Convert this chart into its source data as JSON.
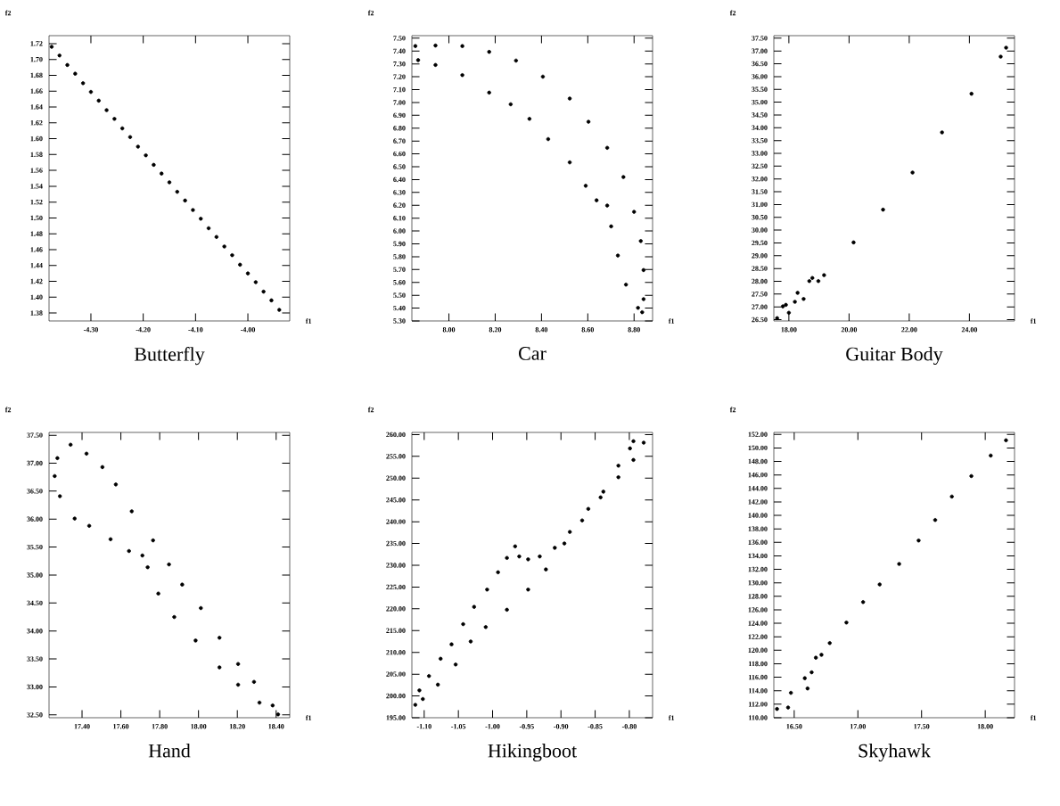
{
  "chart_data": [
    {
      "type": "scatter",
      "title": "Butterfly",
      "xlabel": "f1",
      "ylabel": "f2",
      "color": "#000000",
      "marker": "circle",
      "xlim": [
        -4.38,
        -3.92
      ],
      "ylim": [
        1.37,
        1.73
      ],
      "xticks": [
        {
          "value": -4.3,
          "label": "-4.30"
        },
        {
          "value": -4.2,
          "label": "-4.20"
        },
        {
          "value": -4.1,
          "label": "-4.10"
        },
        {
          "value": -4.0,
          "label": "-4.00"
        }
      ],
      "yticks": [
        {
          "value": 1.38,
          "label": "1.38"
        },
        {
          "value": 1.4,
          "label": "1.40"
        },
        {
          "value": 1.42,
          "label": "1.42"
        },
        {
          "value": 1.44,
          "label": "1.44"
        },
        {
          "value": 1.46,
          "label": "1.46"
        },
        {
          "value": 1.48,
          "label": "1.48"
        },
        {
          "value": 1.5,
          "label": "1.50"
        },
        {
          "value": 1.52,
          "label": "1.52"
        },
        {
          "value": 1.54,
          "label": "1.54"
        },
        {
          "value": 1.56,
          "label": "1.56"
        },
        {
          "value": 1.58,
          "label": "1.58"
        },
        {
          "value": 1.6,
          "label": "1.60"
        },
        {
          "value": 1.62,
          "label": "1.62"
        },
        {
          "value": 1.64,
          "label": "1.64"
        },
        {
          "value": 1.66,
          "label": "1.66"
        },
        {
          "value": 1.68,
          "label": "1.68"
        },
        {
          "value": 1.7,
          "label": "1.70"
        },
        {
          "value": 1.72,
          "label": "1.72"
        }
      ],
      "x": [
        -4.375,
        -4.36,
        -4.345,
        -4.33,
        -4.315,
        -4.3,
        -4.285,
        -4.27,
        -4.255,
        -4.24,
        -4.225,
        -4.21,
        -4.195,
        -4.18,
        -4.165,
        -4.15,
        -4.135,
        -4.12,
        -4.105,
        -4.09,
        -4.075,
        -4.06,
        -4.045,
        -4.03,
        -4.015,
        -4.0,
        -3.985,
        -3.97,
        -3.955,
        -3.94
      ],
      "values": [
        1.716,
        1.705,
        1.693,
        1.682,
        1.67,
        1.659,
        1.648,
        1.636,
        1.625,
        1.613,
        1.602,
        1.59,
        1.579,
        1.567,
        1.556,
        1.545,
        1.533,
        1.522,
        1.51,
        1.499,
        1.487,
        1.476,
        1.464,
        1.453,
        1.441,
        1.43,
        1.419,
        1.407,
        1.396,
        1.384
      ]
    },
    {
      "type": "scatter",
      "title": "Car",
      "xlabel": "f1",
      "ylabel": "f2",
      "color": "#000000",
      "marker": "circle",
      "xlim": [
        7.84,
        8.88
      ],
      "ylim": [
        5.3,
        7.52
      ],
      "xticks": [
        {
          "value": 8.0,
          "label": "8.00"
        },
        {
          "value": 8.2,
          "label": "8.20"
        },
        {
          "value": 8.4,
          "label": "8.40"
        },
        {
          "value": 8.6,
          "label": "8.60"
        },
        {
          "value": 8.8,
          "label": "8.80"
        }
      ],
      "yticks": [
        {
          "value": 5.3,
          "label": "5.30"
        },
        {
          "value": 5.4,
          "label": "5.40"
        },
        {
          "value": 5.5,
          "label": "5.50"
        },
        {
          "value": 5.6,
          "label": "5.60"
        },
        {
          "value": 5.7,
          "label": "5.70"
        },
        {
          "value": 5.8,
          "label": "5.80"
        },
        {
          "value": 5.9,
          "label": "5.90"
        },
        {
          "value": 6.0,
          "label": "6.00"
        },
        {
          "value": 6.1,
          "label": "6.10"
        },
        {
          "value": 6.2,
          "label": "6.20"
        },
        {
          "value": 6.3,
          "label": "6.30"
        },
        {
          "value": 6.4,
          "label": "6.40"
        },
        {
          "value": 6.5,
          "label": "6.50"
        },
        {
          "value": 6.6,
          "label": "6.60"
        },
        {
          "value": 6.7,
          "label": "6.70"
        },
        {
          "value": 6.8,
          "label": "6.80"
        },
        {
          "value": 6.9,
          "label": "6.90"
        },
        {
          "value": 7.0,
          "label": "7.00"
        },
        {
          "value": 7.1,
          "label": "7.10"
        },
        {
          "value": 7.2,
          "label": "7.20"
        },
        {
          "value": 7.3,
          "label": "7.30"
        },
        {
          "value": 7.4,
          "label": "7.40"
        },
        {
          "value": 7.5,
          "label": "7.50"
        }
      ],
      "x": [
        7.855,
        7.942,
        8.058,
        8.174,
        8.29,
        8.406,
        8.522,
        8.603,
        8.684,
        8.754,
        8.8,
        8.829,
        8.841,
        8.841,
        8.835,
        7.867,
        7.942,
        8.058,
        8.174,
        8.267,
        8.348,
        8.429,
        8.522,
        8.591,
        8.638,
        8.684,
        8.701,
        8.73,
        8.765,
        8.817
      ],
      "values": [
        7.439,
        7.443,
        7.439,
        7.394,
        7.326,
        7.201,
        7.031,
        6.85,
        6.647,
        6.42,
        6.149,
        5.922,
        5.696,
        5.47,
        5.368,
        7.33,
        7.292,
        7.213,
        7.077,
        6.986,
        6.873,
        6.715,
        6.534,
        6.352,
        6.239,
        6.198,
        6.036,
        5.809,
        5.583,
        5.402
      ]
    },
    {
      "type": "scatter",
      "title": "Guitar Body",
      "xlabel": "f1",
      "ylabel": "f2",
      "color": "#000000",
      "marker": "circle",
      "xlim": [
        17.5,
        25.5
      ],
      "ylim": [
        26.45,
        37.6
      ],
      "xticks": [
        {
          "value": 18,
          "label": "18.00"
        },
        {
          "value": 20,
          "label": "20.00"
        },
        {
          "value": 22,
          "label": "22.00"
        },
        {
          "value": 24,
          "label": "24.00"
        }
      ],
      "yticks": [
        {
          "value": 26.5,
          "label": "26.50"
        },
        {
          "value": 27.0,
          "label": "27.00"
        },
        {
          "value": 27.5,
          "label": "27.50"
        },
        {
          "value": 28.0,
          "label": "28.00"
        },
        {
          "value": 28.5,
          "label": "28.50"
        },
        {
          "value": 29.0,
          "label": "29.00"
        },
        {
          "value": 29.5,
          "label": "29.50"
        },
        {
          "value": 30.0,
          "label": "30.00"
        },
        {
          "value": 30.5,
          "label": "30.50"
        },
        {
          "value": 31.0,
          "label": "31.00"
        },
        {
          "value": 31.5,
          "label": "31.50"
        },
        {
          "value": 32.0,
          "label": "32.00"
        },
        {
          "value": 32.5,
          "label": "32.50"
        },
        {
          "value": 33.0,
          "label": "33.00"
        },
        {
          "value": 33.5,
          "label": "33.50"
        },
        {
          "value": 34.0,
          "label": "34.00"
        },
        {
          "value": 34.5,
          "label": "34.50"
        },
        {
          "value": 35.0,
          "label": "35.00"
        },
        {
          "value": 35.5,
          "label": "35.50"
        },
        {
          "value": 36.0,
          "label": "36.00"
        },
        {
          "value": 36.5,
          "label": "36.50"
        },
        {
          "value": 37.0,
          "label": "37.00"
        },
        {
          "value": 37.5,
          "label": "37.50"
        }
      ],
      "x": [
        17.61,
        17.8,
        17.9,
        18.0,
        18.2,
        18.29,
        18.49,
        18.68,
        18.78,
        18.98,
        19.17,
        20.15,
        21.13,
        22.11,
        23.09,
        24.07,
        25.04,
        25.22
      ],
      "values": [
        26.56,
        27.02,
        27.08,
        26.77,
        27.2,
        27.55,
        27.31,
        28.01,
        28.13,
        28.01,
        28.24,
        29.52,
        30.8,
        32.25,
        33.82,
        35.33,
        36.78,
        37.13
      ]
    },
    {
      "type": "scatter",
      "title": "Hand",
      "xlabel": "f1",
      "ylabel": "f2",
      "color": "#000000",
      "marker": "circle",
      "xlim": [
        17.23,
        18.47
      ],
      "ylim": [
        32.45,
        37.55
      ],
      "xticks": [
        {
          "value": 17.4,
          "label": "17.40"
        },
        {
          "value": 17.6,
          "label": "17.60"
        },
        {
          "value": 17.8,
          "label": "17.80"
        },
        {
          "value": 18.0,
          "label": "18.00"
        },
        {
          "value": 18.2,
          "label": "18.20"
        },
        {
          "value": 18.4,
          "label": "18.40"
        }
      ],
      "yticks": [
        {
          "value": 32.5,
          "label": "32.50"
        },
        {
          "value": 33.0,
          "label": "33.00"
        },
        {
          "value": 33.5,
          "label": "33.50"
        },
        {
          "value": 34.0,
          "label": "34.00"
        },
        {
          "value": 34.5,
          "label": "34.50"
        },
        {
          "value": 35.0,
          "label": "35.00"
        },
        {
          "value": 35.5,
          "label": "35.50"
        },
        {
          "value": 36.0,
          "label": "36.00"
        },
        {
          "value": 36.5,
          "label": "36.50"
        },
        {
          "value": 37.0,
          "label": "37.00"
        },
        {
          "value": 37.5,
          "label": "37.50"
        }
      ],
      "x": [
        17.341,
        17.273,
        17.259,
        17.286,
        17.362,
        17.437,
        17.547,
        17.642,
        17.711,
        17.738,
        17.793,
        17.875,
        17.985,
        18.108,
        18.204,
        18.314,
        18.41,
        17.423,
        17.505,
        17.574,
        17.656,
        17.766,
        17.848,
        17.916,
        18.012,
        18.108,
        18.204,
        18.286,
        18.382
      ],
      "values": [
        37.33,
        37.09,
        36.77,
        36.41,
        36.01,
        35.88,
        35.64,
        35.43,
        35.35,
        35.14,
        34.67,
        34.25,
        33.83,
        33.35,
        33.04,
        32.72,
        32.51,
        37.17,
        36.93,
        36.62,
        36.14,
        35.62,
        35.19,
        34.83,
        34.41,
        33.88,
        33.41,
        33.09,
        32.67
      ]
    },
    {
      "type": "scatter",
      "title": "Hikingboot",
      "xlabel": "f1",
      "ylabel": "f2",
      "color": "#000000",
      "marker": "circle",
      "xlim": [
        -1.118,
        -0.766
      ],
      "ylim": [
        195,
        260.5
      ],
      "xticks": [
        {
          "value": -1.1,
          "label": "-1.10"
        },
        {
          "value": -1.05,
          "label": "-1.05"
        },
        {
          "value": -1.0,
          "label": "-1.00"
        },
        {
          "value": -0.95,
          "label": "-0.95"
        },
        {
          "value": -0.9,
          "label": "-0.90"
        },
        {
          "value": -0.85,
          "label": "-0.85"
        },
        {
          "value": -0.8,
          "label": "-0.80"
        }
      ],
      "yticks": [
        {
          "value": 195,
          "label": "195.00"
        },
        {
          "value": 200,
          "label": "200.00"
        },
        {
          "value": 205,
          "label": "205.00"
        },
        {
          "value": 210,
          "label": "210.00"
        },
        {
          "value": 215,
          "label": "215.00"
        },
        {
          "value": 220,
          "label": "220.00"
        },
        {
          "value": 225,
          "label": "225.00"
        },
        {
          "value": 230,
          "label": "230.00"
        },
        {
          "value": 235,
          "label": "235.00"
        },
        {
          "value": 240,
          "label": "240.00"
        },
        {
          "value": 245,
          "label": "245.00"
        },
        {
          "value": 250,
          "label": "250.00"
        },
        {
          "value": 255,
          "label": "255.00"
        },
        {
          "value": 260,
          "label": "260.00"
        }
      ],
      "x": [
        -1.113,
        -1.107,
        -1.093,
        -1.076,
        -1.06,
        -1.043,
        -1.027,
        -1.008,
        -0.992,
        -0.979,
        -0.967,
        -0.961,
        -0.948,
        -0.931,
        -0.909,
        -0.887,
        -0.86,
        -0.838,
        -0.816,
        -0.799,
        -0.794,
        -1.102,
        -1.08,
        -1.054,
        -1.032,
        -1.01,
        -0.979,
        -0.948,
        -0.922,
        -0.895,
        -0.869,
        -0.842,
        -0.816,
        -0.794,
        -0.779
      ],
      "values": [
        197.96,
        201.27,
        204.58,
        208.54,
        211.85,
        216.48,
        220.45,
        224.42,
        228.39,
        231.69,
        234.34,
        232.02,
        231.36,
        232.02,
        234.01,
        237.65,
        242.94,
        246.9,
        252.86,
        256.83,
        258.48,
        199.29,
        202.59,
        207.22,
        212.51,
        215.82,
        219.79,
        224.42,
        229.05,
        235.0,
        240.29,
        245.58,
        250.21,
        254.18,
        258.15
      ]
    },
    {
      "type": "scatter",
      "title": "Skyhawk",
      "xlabel": "f1",
      "ylabel": "f2",
      "color": "#000000",
      "marker": "circle",
      "xlim": [
        16.34,
        18.23
      ],
      "ylim": [
        110,
        152.3
      ],
      "xticks": [
        {
          "value": 16.5,
          "label": "16.50"
        },
        {
          "value": 17.0,
          "label": "17.00"
        },
        {
          "value": 17.5,
          "label": "17.50"
        },
        {
          "value": 18.0,
          "label": "18.00"
        }
      ],
      "yticks": [
        {
          "value": 110,
          "label": "110.00"
        },
        {
          "value": 112,
          "label": "112.00"
        },
        {
          "value": 114,
          "label": "114.00"
        },
        {
          "value": 116,
          "label": "116.00"
        },
        {
          "value": 118,
          "label": "118.00"
        },
        {
          "value": 120,
          "label": "120.00"
        },
        {
          "value": 122,
          "label": "122.00"
        },
        {
          "value": 124,
          "label": "124.00"
        },
        {
          "value": 126,
          "label": "126.00"
        },
        {
          "value": 128,
          "label": "128.00"
        },
        {
          "value": 130,
          "label": "130.00"
        },
        {
          "value": 132,
          "label": "132.00"
        },
        {
          "value": 134,
          "label": "134.00"
        },
        {
          "value": 136,
          "label": "136.00"
        },
        {
          "value": 138,
          "label": "138.00"
        },
        {
          "value": 140,
          "label": "140.00"
        },
        {
          "value": 142,
          "label": "142.00"
        },
        {
          "value": 144,
          "label": "144.00"
        },
        {
          "value": 146,
          "label": "146.00"
        },
        {
          "value": 148,
          "label": "148.00"
        },
        {
          "value": 150,
          "label": "150.00"
        },
        {
          "value": 152,
          "label": "152.00"
        }
      ],
      "x": [
        16.365,
        16.474,
        16.583,
        16.67,
        16.779,
        16.91,
        17.041,
        17.171,
        17.324,
        17.477,
        17.607,
        17.738,
        17.891,
        18.043,
        18.163,
        16.452,
        16.605,
        16.637,
        16.714
      ],
      "values": [
        111.3,
        113.69,
        115.86,
        118.9,
        121.07,
        124.11,
        127.15,
        129.76,
        132.8,
        136.27,
        139.32,
        142.79,
        145.83,
        148.87,
        151.13,
        111.51,
        114.34,
        116.73,
        119.33
      ]
    }
  ]
}
